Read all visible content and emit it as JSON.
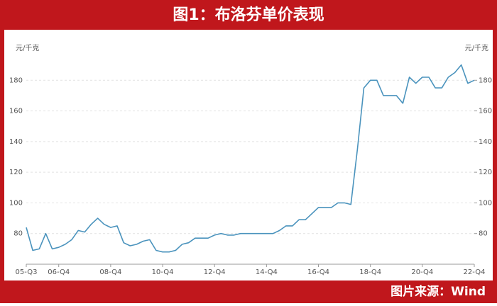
{
  "chart_data": {
    "type": "line",
    "title": "图1：布洛芬单价表现",
    "source": "图片来源：Wind",
    "ylabel": "元/千克",
    "y2label": "元/千克",
    "categories": [
      "05-Q3",
      null,
      null,
      null,
      null,
      "06-Q4",
      null,
      null,
      null,
      null,
      null,
      null,
      null,
      "08-Q4",
      null,
      null,
      null,
      null,
      null,
      null,
      null,
      "10-Q4",
      null,
      null,
      null,
      null,
      null,
      null,
      null,
      "12-Q4",
      null,
      null,
      null,
      null,
      null,
      null,
      null,
      "14-Q4",
      null,
      null,
      null,
      null,
      null,
      null,
      null,
      "16-Q4",
      null,
      null,
      null,
      null,
      null,
      null,
      null,
      "18-Q4",
      null,
      null,
      null,
      null,
      null,
      null,
      null,
      "20-Q4",
      null,
      null,
      null,
      null,
      null,
      null,
      null,
      "22-Q4"
    ],
    "values": [
      84,
      69,
      70,
      80,
      70,
      71,
      73,
      76,
      82,
      81,
      86,
      90,
      86,
      84,
      85,
      74,
      72,
      73,
      75,
      76,
      69,
      68,
      68,
      69,
      73,
      74,
      77,
      77,
      77,
      79,
      80,
      79,
      79,
      80,
      80,
      80,
      80,
      80,
      80,
      82,
      85,
      85,
      89,
      89,
      93,
      97,
      97,
      97,
      100,
      100,
      99,
      135,
      175,
      180,
      180,
      170,
      170,
      170,
      165,
      182,
      178,
      182,
      182,
      175,
      175,
      182,
      185,
      190,
      178,
      180
    ],
    "color": "#4a93bd",
    "ylim": [
      60,
      200
    ],
    "yticks": [
      80,
      100,
      120,
      140,
      160,
      180
    ],
    "y2lim": [
      60,
      200
    ],
    "y2ticks": [
      80,
      100,
      120,
      140,
      160,
      180
    ],
    "grid": true
  }
}
